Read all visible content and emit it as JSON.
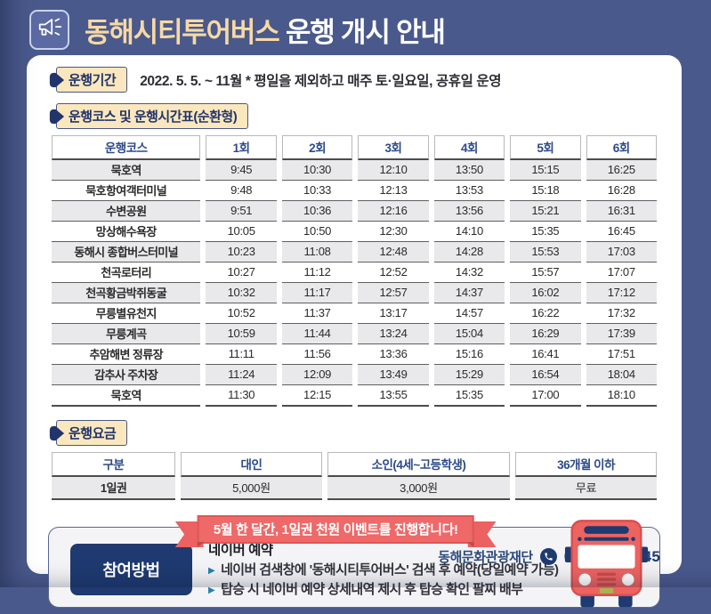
{
  "colors": {
    "background_navy": "#4a598c",
    "badge_cream": "#fbe7bd",
    "accent_navy": "#1e3a70",
    "header_text_navy": "#2c4a8c",
    "title_highlight": "#f7d9a4",
    "ribbon_red": "#ee6968",
    "stripe_gray": "#e9e9ec",
    "bullet_blue": "#2a7fb0"
  },
  "icons": {
    "bullet_glyph": "▶"
  },
  "header": {
    "title_highlight": "동해시티투어버스",
    "title_rest": " 운행 개시 안내"
  },
  "period": {
    "label": "운행기간",
    "text": "2022. 5. 5. ~ 11월  * 평일을 제외하고 매주 토·일요일, 공휴일 운영"
  },
  "schedule": {
    "label": "운행코스 및 운행시간표(순환형)",
    "columns": [
      "운행코스",
      "1회",
      "2회",
      "3회",
      "4회",
      "5회",
      "6회"
    ],
    "rows": [
      [
        "묵호역",
        "9:45",
        "10:30",
        "12:10",
        "13:50",
        "15:15",
        "16:25"
      ],
      [
        "묵호항여객터미널",
        "9:48",
        "10:33",
        "12:13",
        "13:53",
        "15:18",
        "16:28"
      ],
      [
        "수변공원",
        "9:51",
        "10:36",
        "12:16",
        "13:56",
        "15:21",
        "16:31"
      ],
      [
        "망상해수욕장",
        "10:05",
        "10:50",
        "12:30",
        "14:10",
        "15:35",
        "16:45"
      ],
      [
        "동해시 종합버스터미널",
        "10:23",
        "11:08",
        "12:48",
        "14:28",
        "15:53",
        "17:03"
      ],
      [
        "천곡로터리",
        "10:27",
        "11:12",
        "12:52",
        "14:32",
        "15:57",
        "17:07"
      ],
      [
        "천곡황금박쥐동굴",
        "10:32",
        "11:17",
        "12:57",
        "14:37",
        "16:02",
        "17:12"
      ],
      [
        "무릉별유천지",
        "10:52",
        "11:37",
        "13:17",
        "14:57",
        "16:22",
        "17:32"
      ],
      [
        "무릉계곡",
        "10:59",
        "11:44",
        "13:24",
        "15:04",
        "16:29",
        "17:39"
      ],
      [
        "추암해변 정류장",
        "11:11",
        "11:56",
        "13:36",
        "15:16",
        "16:41",
        "17:51"
      ],
      [
        "감추사 주차장",
        "11:24",
        "12:09",
        "13:49",
        "15:29",
        "16:54",
        "18:04"
      ],
      [
        "묵호역",
        "11:30",
        "12:15",
        "13:55",
        "15:35",
        "17:00",
        "18:10"
      ]
    ]
  },
  "fare": {
    "label": "운행요금",
    "columns": [
      "구분",
      "대인",
      "소인(4세~고등학생)",
      "36개월 이하"
    ],
    "rows": [
      [
        "1일권",
        "5,000원",
        "3,000원",
        "무료"
      ]
    ]
  },
  "event": {
    "banner": "5월 한 달간, 1일권 천원 이벤트를 진행합니다!"
  },
  "participation": {
    "label": "참여방법",
    "heading": "네이버 예약",
    "items": [
      "네이버 검색창에 '동해시티투어버스' 검색 후 예약(당일예약 가능)",
      "탑승 시 네이버 예약 상세내역 제시 후 탑승 확인 팔찌 배부"
    ]
  },
  "footer": {
    "org": "동해문화관광재단",
    "phone": "033-532-1945"
  }
}
